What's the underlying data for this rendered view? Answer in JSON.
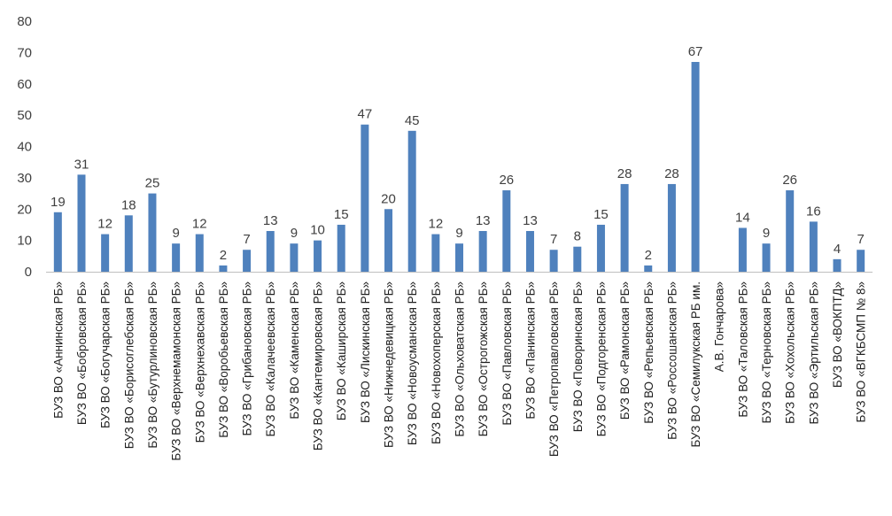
{
  "chart_data": {
    "type": "bar",
    "categories": [
      "БУЗ ВО «Аннинская РБ»",
      "БУЗ ВО «Бобровская РБ»",
      "БУЗ ВО «Богучарская РБ»",
      "БУЗ ВО «Борисоглебская РБ»",
      "БУЗ ВО «Бутурлиновская РБ»",
      "БУЗ ВО «Верхнемамонская РБ»",
      "БУЗ ВО «Верхнехавская РБ»",
      "БУЗ ВО «Воробьевская РБ»",
      "БУЗ ВО «Грибановская РБ»",
      "БУЗ ВО «Калачеевская РБ»",
      "БУЗ ВО «Каменская РБ»",
      "БУЗ ВО «Кантемировская РБ»",
      "БУЗ ВО «Каширская РБ»",
      "БУЗ ВО «Лискинская РБ»",
      "БУЗ ВО «Нижнедевицкая РБ»",
      "БУЗ ВО «Новоусманская РБ»",
      "БУЗ ВО «Новохоперская РБ»",
      "БУЗ ВО «Ольховатская РБ»",
      "БУЗ ВО «Острогожская РБ»",
      "БУЗ ВО «Павловская РБ»",
      "БУЗ ВО «Панинская РБ»",
      "БУЗ ВО «Петропавловская РБ»",
      "БУЗ ВО «Поворинская РБ»",
      "БУЗ ВО «Подгоренская РБ»",
      "БУЗ ВО «Рамонская РБ»",
      "БУЗ ВО «Репьевская РБ»",
      "БУЗ ВО «Россошанская РБ»",
      "БУЗ ВО «Семилукская РБ им.",
      "А.В. Гончарова»",
      "БУЗ ВО «Таловская РБ»",
      "БУЗ ВО «Терновская РБ»",
      "БУЗ ВО «Хохольская РБ»",
      "БУЗ ВО «Эртильская РБ»",
      "БУЗ ВО «ВОКПТД»",
      "БУЗ ВО «ВГКБСМП № 8»"
    ],
    "values": [
      19,
      31,
      12,
      18,
      25,
      9,
      12,
      2,
      7,
      13,
      9,
      10,
      15,
      47,
      20,
      45,
      12,
      9,
      13,
      26,
      13,
      7,
      8,
      15,
      28,
      2,
      28,
      67,
      null,
      14,
      9,
      26,
      16,
      4,
      7
    ],
    "data_labels": [
      "19",
      "31",
      "12",
      "18",
      "25",
      "9",
      "12",
      "2",
      "7",
      "13",
      "9",
      "10",
      "15",
      "47",
      "20",
      "45",
      "12",
      "9",
      "13",
      "26",
      "13",
      "7",
      "8",
      "15",
      "28",
      "2",
      "28",
      "67",
      "",
      "14",
      "9",
      "26",
      "16",
      "4",
      "7"
    ],
    "y_ticks": [
      "0",
      "10",
      "20",
      "30",
      "40",
      "50",
      "60",
      "70",
      "80"
    ],
    "ylim": [
      0,
      80
    ],
    "grid": false,
    "legend": "none",
    "bar_color": "#4f81bd",
    "axis_color": "#bfbfbf",
    "title": "",
    "xlabel": "",
    "ylabel": ""
  }
}
